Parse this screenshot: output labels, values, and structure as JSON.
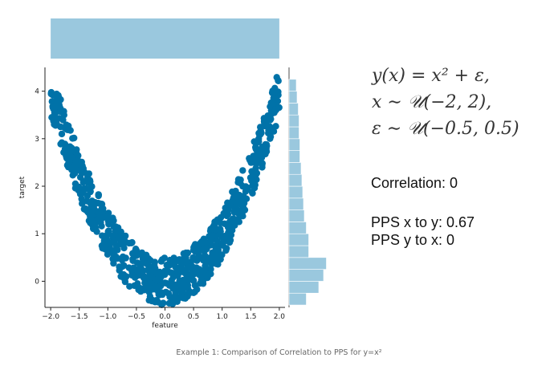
{
  "chart_data": {
    "type": "scatter",
    "xlabel": "feature",
    "ylabel": "target",
    "xlim": [
      -2.1,
      2.1
    ],
    "ylim": [
      -0.55,
      4.5
    ],
    "xticks": [
      -2.0,
      -1.5,
      -1.0,
      -0.5,
      0.0,
      0.5,
      1.0,
      1.5,
      2.0
    ],
    "xtick_labels": [
      "−2.0",
      "−1.5",
      "−1.0",
      "−0.5",
      "0.0",
      "0.5",
      "1.0",
      "1.5",
      "2.0"
    ],
    "yticks": [
      0,
      1,
      2,
      3,
      4
    ],
    "ytick_labels": [
      "0",
      "1",
      "2",
      "3",
      "4"
    ],
    "grid": false,
    "point_color": "#0072a8",
    "hist_color": "#9ac8de",
    "marginal_x_hist": {
      "bins": [
        -2.0,
        2.0
      ],
      "relative_height": 1.0
    },
    "marginal_y_hist": {
      "bin_edges": [
        -0.5,
        -0.25,
        0.0,
        0.25,
        0.5,
        0.75,
        1.0,
        1.25,
        1.5,
        1.75,
        2.0,
        2.25,
        2.5,
        2.75,
        3.0,
        3.25,
        3.5,
        3.75,
        4.0,
        4.25
      ],
      "relative_counts": [
        0.43,
        0.74,
        0.86,
        0.93,
        0.49,
        0.49,
        0.43,
        0.38,
        0.36,
        0.34,
        0.32,
        0.3,
        0.27,
        0.27,
        0.25,
        0.25,
        0.23,
        0.2,
        0.18
      ]
    },
    "model": "y = x^2 + noise, x in [-2, 2], noise in [-0.5, 0.5]",
    "n_points": 800
  },
  "annotations": {
    "formula_line1": "y(x) = x² + ε,",
    "formula_line2": "x ∼ 𝒰(−2, 2),",
    "formula_line3": "ε ∼ 𝒰(−0.5, 0.5)",
    "correlation": "Correlation: 0",
    "pps_x_to_y": "PPS x to y: 0.67",
    "pps_y_to_x": "PPS y to x: 0"
  },
  "caption": "Example 1: Comparison of Correlation to PPS for y=x²"
}
